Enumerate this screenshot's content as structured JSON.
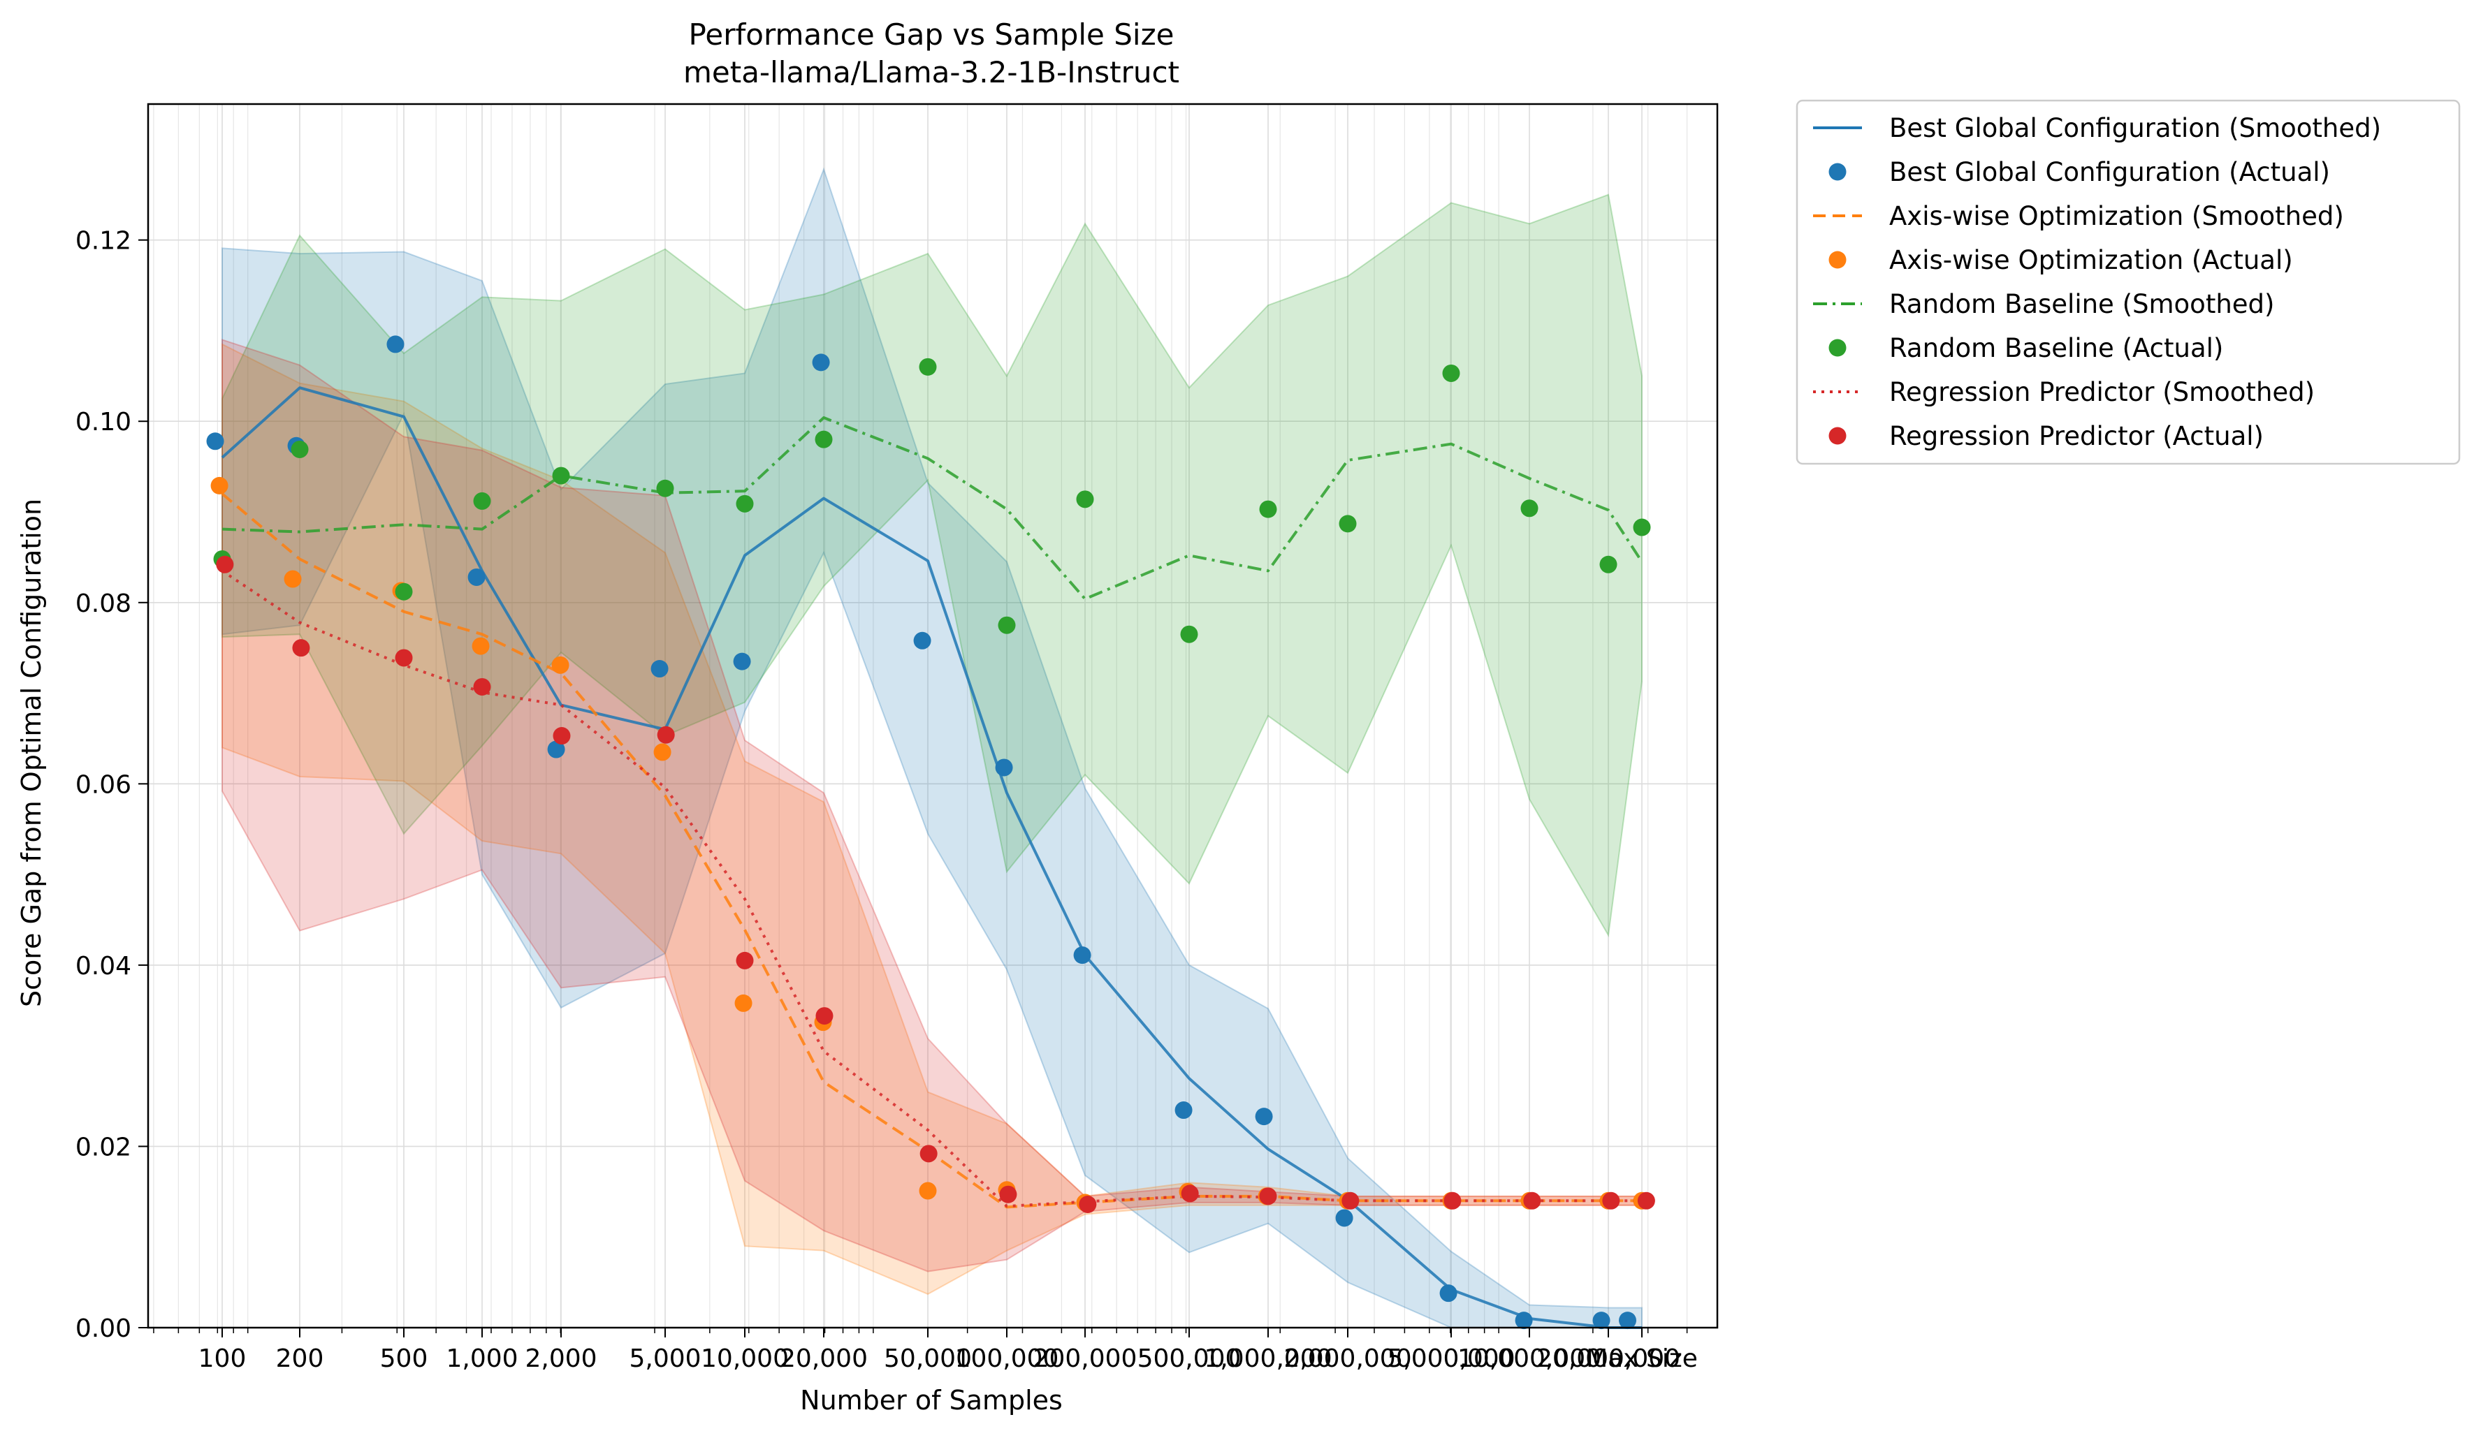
{
  "chart_data": {
    "type": "line",
    "title": "Performance Gap vs Sample Size",
    "subtitle": "meta-llama/Llama-3.2-1B-Instruct",
    "xlabel": "Number of Samples",
    "ylabel": "Score Gap from Optimal Configuration",
    "xscale": "log",
    "xlim": [
      48,
      5000000.0
    ],
    "ylim": [
      0,
      0.135
    ],
    "grid": true,
    "legend_position": "outside-right",
    "x_tick_labels": [
      "100",
      "200",
      "500",
      "1,000",
      "2,000",
      "5,000",
      "10,000",
      "20,000",
      "50,000",
      "100,000",
      "200,000",
      "500,000",
      "1,000,000",
      "2,000,000",
      "5,000,000",
      "10,000,000",
      "20,000,000",
      "Max Size"
    ],
    "y_tick_labels": [
      "0.00",
      "0.02",
      "0.04",
      "0.06",
      "0.08",
      "0.10",
      "0.12"
    ],
    "y_ticks": [
      0,
      0.02,
      0.04,
      0.06,
      0.08,
      0.1,
      0.12
    ],
    "series": [
      {
        "name": "Best Global Configuration",
        "smoothed_label": "Best Global Configuration (Smoothed)",
        "actual_label": "Best Global Configuration (Actual)",
        "color": "#1f77b4",
        "dash": "solid",
        "smoothed": {
          "x": [
            100,
            200,
            500,
            1000,
            2000,
            5000,
            10000,
            20000,
            50000,
            100000,
            200000,
            500000,
            1000000,
            2000000,
            5000000,
            10000000,
            20000000,
            30000000
          ],
          "y": [
            0.096,
            0.1037,
            0.1005,
            0.0835,
            0.0687,
            0.066,
            0.0852,
            0.0915,
            0.0846,
            0.059,
            0.0411,
            0.0275,
            0.0197,
            0.0141,
            0.0042,
            0.001,
            -0.0003,
            -0.0003
          ]
        },
        "actual": {
          "x": [
            95,
            195,
            470,
            960,
            1930,
            4800,
            9800,
            19600,
            48000,
            98000,
            196000,
            480000,
            970000,
            1950000,
            4900000,
            9600000,
            19000000,
            27000000
          ],
          "y": [
            0.0978,
            0.0973,
            0.1085,
            0.0828,
            0.0638,
            0.0727,
            0.0735,
            0.1065,
            0.0758,
            0.0618,
            0.0411,
            0.024,
            0.0233,
            0.0121,
            0.0038,
            0.0008,
            0.0008,
            0.0008
          ]
        },
        "band_upper": [
          0.1191,
          0.1185,
          0.1187,
          0.1155,
          0.0925,
          0.1041,
          0.1053,
          0.1278,
          0.0932,
          0.0845,
          0.0595,
          0.04,
          0.0352,
          0.0187,
          0.0084,
          0.0025,
          0.0022,
          0.0022
        ],
        "band_lower": [
          0.0765,
          0.0775,
          0.1008,
          0.05,
          0.0353,
          0.0413,
          0.068,
          0.0855,
          0.0545,
          0.0395,
          0.0168,
          0.0083,
          0.0115,
          0.005,
          0.0,
          0.0,
          0.0,
          0.0
        ]
      },
      {
        "name": "Axis-wise Optimization",
        "smoothed_label": "Axis-wise Optimization (Smoothed)",
        "actual_label": "Axis-wise Optimization (Actual)",
        "color": "#ff7f0e",
        "dash": "dashed",
        "smoothed": {
          "x": [
            100,
            200,
            500,
            1000,
            2000,
            5000,
            10000,
            20000,
            50000,
            100000,
            200000,
            500000,
            1000000,
            2000000,
            5000000,
            10000000,
            20000000,
            30000000
          ],
          "y": [
            0.092,
            0.0848,
            0.079,
            0.0765,
            0.0722,
            0.0587,
            0.0439,
            0.0271,
            0.0195,
            0.0133,
            0.0138,
            0.0145,
            0.0145,
            0.014,
            0.014,
            0.014,
            0.014,
            0.014
          ]
        },
        "actual": {
          "x": [
            98,
            190,
            490,
            990,
            1990,
            4900,
            9900,
            19900,
            50000,
            100000,
            200000,
            495000,
            990000,
            2000000,
            5000000,
            10000000,
            20000000,
            30000000
          ],
          "y": [
            0.0929,
            0.0826,
            0.0813,
            0.0752,
            0.0731,
            0.0635,
            0.0358,
            0.0337,
            0.0151,
            0.0152,
            0.0138,
            0.015,
            0.0145,
            0.014,
            0.014,
            0.014,
            0.014,
            0.014
          ]
        },
        "band_upper": [
          0.1085,
          0.1042,
          0.1022,
          0.097,
          0.0935,
          0.0855,
          0.0625,
          0.058,
          0.026,
          0.0225,
          0.0145,
          0.016,
          0.0155,
          0.0145,
          0.0145,
          0.0145,
          0.0145,
          0.0145
        ],
        "band_lower": [
          0.064,
          0.0608,
          0.0603,
          0.0537,
          0.0523,
          0.0413,
          0.009,
          0.0085,
          0.0037,
          0.0085,
          0.0125,
          0.0135,
          0.0135,
          0.0135,
          0.0135,
          0.0135,
          0.0135,
          0.0135
        ]
      },
      {
        "name": "Random Baseline",
        "smoothed_label": "Random Baseline (Smoothed)",
        "actual_label": "Random Baseline (Actual)",
        "color": "#2ca02c",
        "dash": "dashdot",
        "smoothed": {
          "x": [
            100,
            200,
            500,
            1000,
            2000,
            5000,
            10000,
            20000,
            50000,
            100000,
            200000,
            500000,
            1000000,
            2000000,
            5000000,
            10000000,
            20000000,
            30000000
          ],
          "y": [
            0.0881,
            0.0878,
            0.0886,
            0.0881,
            0.094,
            0.0921,
            0.0923,
            0.1004,
            0.0959,
            0.0903,
            0.0804,
            0.0852,
            0.0835,
            0.0957,
            0.0975,
            0.0937,
            0.0902,
            0.0845
          ]
        },
        "actual": {
          "x": [
            100,
            200,
            500,
            1000,
            2000,
            5000,
            10000,
            20000,
            50000,
            100000,
            200000,
            500000,
            1000000,
            2000000,
            5000000,
            10000000,
            20000000,
            30000000
          ],
          "y": [
            0.0848,
            0.0969,
            0.0812,
            0.0912,
            0.094,
            0.0926,
            0.0909,
            0.098,
            0.106,
            0.0775,
            0.0914,
            0.0765,
            0.0903,
            0.0887,
            0.1053,
            0.0904,
            0.0842,
            0.0883
          ]
        },
        "band_upper": [
          0.1025,
          0.1205,
          0.1075,
          0.1137,
          0.1133,
          0.119,
          0.1123,
          0.114,
          0.1185,
          0.105,
          0.1218,
          0.1037,
          0.1128,
          0.116,
          0.1241,
          0.1218,
          0.125,
          0.105
        ],
        "band_lower": [
          0.0762,
          0.0765,
          0.0545,
          0.0642,
          0.0745,
          0.0653,
          0.069,
          0.0818,
          0.0935,
          0.0503,
          0.061,
          0.049,
          0.0675,
          0.0612,
          0.0863,
          0.0583,
          0.0433,
          0.0713
        ]
      },
      {
        "name": "Regression Predictor",
        "smoothed_label": "Regression Predictor (Smoothed)",
        "actual_label": "Regression Predictor (Actual)",
        "color": "#d62728",
        "dash": "dotted",
        "smoothed": {
          "x": [
            100,
            200,
            500,
            1000,
            2000,
            5000,
            10000,
            20000,
            50000,
            100000,
            200000,
            500000,
            1000000,
            2000000,
            5000000,
            10000000,
            20000000,
            30000000
          ],
          "y": [
            0.0835,
            0.0778,
            0.0731,
            0.0701,
            0.0687,
            0.0596,
            0.0473,
            0.0305,
            0.0218,
            0.0134,
            0.0139,
            0.0145,
            0.0144,
            0.014,
            0.014,
            0.014,
            0.014,
            0.014
          ]
        },
        "actual": {
          "x": [
            102,
            202,
            500,
            1000,
            2010,
            5030,
            10000,
            20100,
            50300,
            101000,
            204000,
            503000,
            1000000,
            2040000,
            5050000,
            10200000,
            20400000,
            31000000
          ],
          "y": [
            0.0842,
            0.075,
            0.0739,
            0.0707,
            0.0653,
            0.0654,
            0.0405,
            0.0344,
            0.0192,
            0.0147,
            0.0136,
            0.0148,
            0.0145,
            0.014,
            0.014,
            0.014,
            0.014,
            0.014
          ]
        },
        "band_upper": [
          0.109,
          0.1062,
          0.0983,
          0.0968,
          0.0927,
          0.0918,
          0.0648,
          0.059,
          0.0319,
          0.0225,
          0.0145,
          0.0155,
          0.015,
          0.0145,
          0.0145,
          0.0145,
          0.0145,
          0.0145
        ],
        "band_lower": [
          0.0592,
          0.0438,
          0.0473,
          0.0505,
          0.0375,
          0.0387,
          0.0162,
          0.0107,
          0.0062,
          0.0075,
          0.0128,
          0.0138,
          0.0138,
          0.0135,
          0.0135,
          0.0135,
          0.0135,
          0.0135
        ]
      }
    ]
  }
}
